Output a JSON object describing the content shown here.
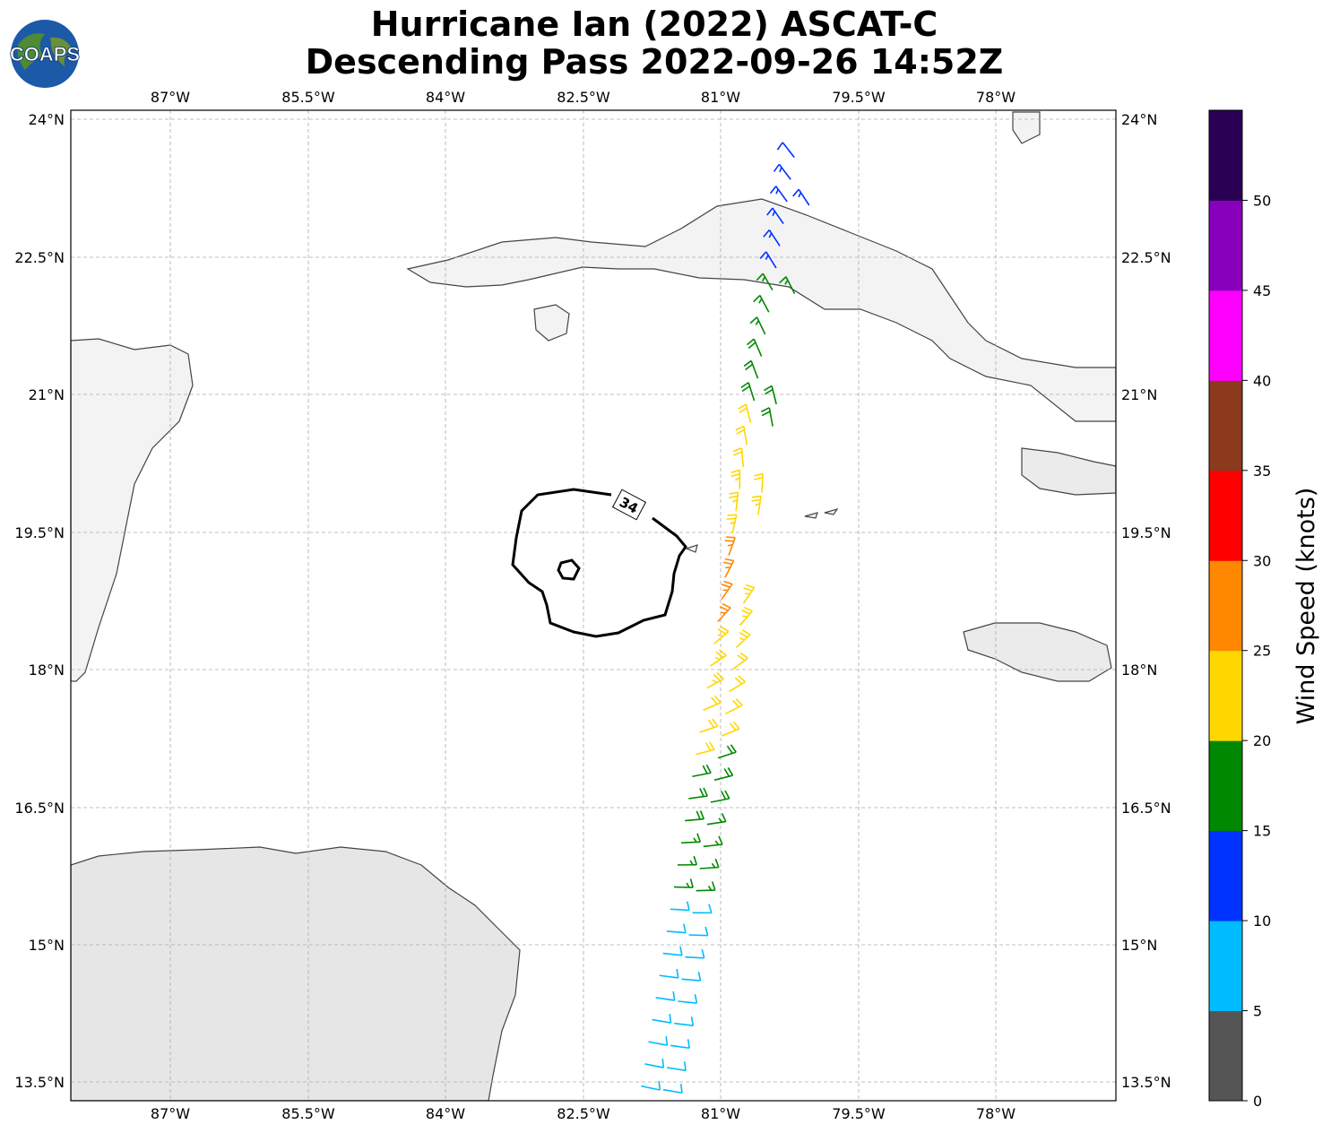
{
  "title": {
    "line1": "Hurricane Ian (2022) ASCAT-C",
    "line2": "Descending Pass 2022-09-26 14:52Z"
  },
  "logo": {
    "text": "COAPS"
  },
  "map": {
    "lon_ticks": [
      "87°W",
      "85.5°W",
      "84°W",
      "82.5°W",
      "81°W",
      "79.5°W",
      "78°W"
    ],
    "lat_ticks": [
      "24°N",
      "22.5°N",
      "21°N",
      "19.5°N",
      "18°N",
      "16.5°N",
      "15°N",
      "13.5°N"
    ],
    "contour_label": "34",
    "gridlines": true
  },
  "colorbar": {
    "title": "Wind Speed (knots)",
    "ticks": [
      "0",
      "5",
      "10",
      "15",
      "20",
      "25",
      "30",
      "35",
      "40",
      "45",
      "50"
    ],
    "colors": [
      "#555555",
      "#00bbff",
      "#0033ff",
      "#008800",
      "#ffd700",
      "#ff8800",
      "#ff0000",
      "#8b3a1e",
      "#ff00ff",
      "#8800bb",
      "#2a0055"
    ]
  },
  "chart_data": {
    "type": "wind-barb map",
    "center_lat": 19.2,
    "center_lon": -82.8,
    "lon_range": [
      -88.1,
      -76.7
    ],
    "lat_range": [
      13.3,
      24.1
    ],
    "contour_kt": 34
  }
}
